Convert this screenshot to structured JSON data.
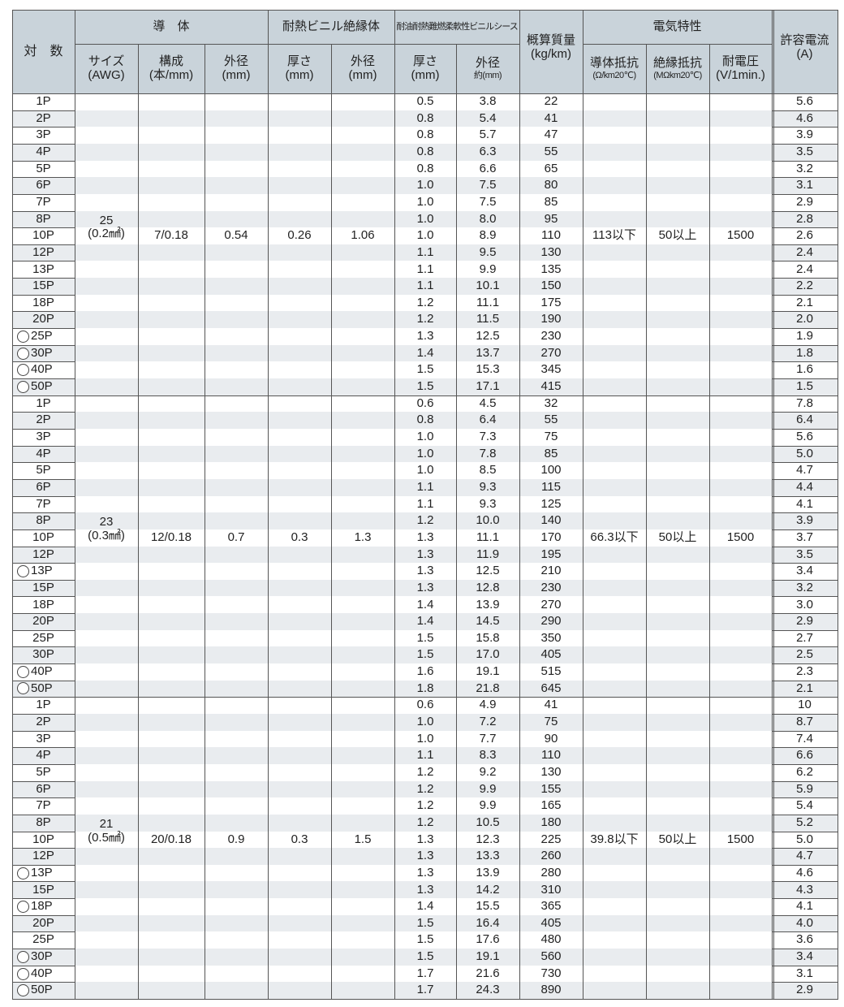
{
  "header": {
    "pairs": "対　数",
    "conductor": "導　体",
    "conductor_size": "サイズ",
    "conductor_size_unit": "(AWG)",
    "conductor_construction": "構成",
    "conductor_construction_unit": "(本/mm)",
    "conductor_od": "外径",
    "conductor_od_unit": "(mm)",
    "insulation": "耐熱ビニル絶縁体",
    "insulation_thickness": "厚さ",
    "insulation_thickness_unit": "(mm)",
    "insulation_od": "外径",
    "insulation_od_unit": "(mm)",
    "sheath": "耐油耐熱難燃柔軟性ビニルシース",
    "sheath_thickness": "厚さ",
    "sheath_thickness_unit": "(mm)",
    "sheath_od": "外径",
    "sheath_od_unit": "約(mm)",
    "mass": "概算質量",
    "mass_unit": "(kg/km)",
    "electrical": "電気特性",
    "resistance": "導体抵抗",
    "resistance_unit": "(Ω/km20℃)",
    "insulation_resistance": "絶縁抵抗",
    "insulation_resistance_unit": "(MΩkm20℃)",
    "withstand_voltage": "耐電圧",
    "withstand_voltage_unit": "(V/1min.)",
    "current": "許容電流",
    "current_unit": "(A)"
  },
  "groups": [
    {
      "awg": "25",
      "area": "(0.2㎟)",
      "construction": "7/0.18",
      "conductor_od": "0.54",
      "ins_thickness": "0.26",
      "ins_od": "1.06",
      "resistance": "113以下",
      "ins_resistance": "50以上",
      "voltage": "1500",
      "rows": [
        {
          "pairs": "1P",
          "marked": false,
          "thickness": "0.5",
          "od": "3.8",
          "mass": "22",
          "current": "5.6"
        },
        {
          "pairs": "2P",
          "marked": false,
          "thickness": "0.8",
          "od": "5.4",
          "mass": "41",
          "current": "4.6"
        },
        {
          "pairs": "3P",
          "marked": false,
          "thickness": "0.8",
          "od": "5.7",
          "mass": "47",
          "current": "3.9"
        },
        {
          "pairs": "4P",
          "marked": false,
          "thickness": "0.8",
          "od": "6.3",
          "mass": "55",
          "current": "3.5"
        },
        {
          "pairs": "5P",
          "marked": false,
          "thickness": "0.8",
          "od": "6.6",
          "mass": "65",
          "current": "3.2"
        },
        {
          "pairs": "6P",
          "marked": false,
          "thickness": "1.0",
          "od": "7.5",
          "mass": "80",
          "current": "3.1"
        },
        {
          "pairs": "7P",
          "marked": false,
          "thickness": "1.0",
          "od": "7.5",
          "mass": "85",
          "current": "2.9"
        },
        {
          "pairs": "8P",
          "marked": false,
          "thickness": "1.0",
          "od": "8.0",
          "mass": "95",
          "current": "2.8"
        },
        {
          "pairs": "10P",
          "marked": false,
          "thickness": "1.0",
          "od": "8.9",
          "mass": "110",
          "current": "2.6"
        },
        {
          "pairs": "12P",
          "marked": false,
          "thickness": "1.1",
          "od": "9.5",
          "mass": "130",
          "current": "2.4"
        },
        {
          "pairs": "13P",
          "marked": false,
          "thickness": "1.1",
          "od": "9.9",
          "mass": "135",
          "current": "2.4"
        },
        {
          "pairs": "15P",
          "marked": false,
          "thickness": "1.1",
          "od": "10.1",
          "mass": "150",
          "current": "2.2"
        },
        {
          "pairs": "18P",
          "marked": false,
          "thickness": "1.2",
          "od": "11.1",
          "mass": "175",
          "current": "2.1"
        },
        {
          "pairs": "20P",
          "marked": false,
          "thickness": "1.2",
          "od": "11.5",
          "mass": "190",
          "current": "2.0"
        },
        {
          "pairs": "25P",
          "marked": true,
          "thickness": "1.3",
          "od": "12.5",
          "mass": "230",
          "current": "1.9"
        },
        {
          "pairs": "30P",
          "marked": true,
          "thickness": "1.4",
          "od": "13.7",
          "mass": "270",
          "current": "1.8"
        },
        {
          "pairs": "40P",
          "marked": true,
          "thickness": "1.5",
          "od": "15.3",
          "mass": "345",
          "current": "1.6"
        },
        {
          "pairs": "50P",
          "marked": true,
          "thickness": "1.5",
          "od": "17.1",
          "mass": "415",
          "current": "1.5"
        }
      ]
    },
    {
      "awg": "23",
      "area": "(0.3㎟)",
      "construction": "12/0.18",
      "conductor_od": "0.7",
      "ins_thickness": "0.3",
      "ins_od": "1.3",
      "resistance": "66.3以下",
      "ins_resistance": "50以上",
      "voltage": "1500",
      "rows": [
        {
          "pairs": "1P",
          "marked": false,
          "thickness": "0.6",
          "od": "4.5",
          "mass": "32",
          "current": "7.8"
        },
        {
          "pairs": "2P",
          "marked": false,
          "thickness": "0.8",
          "od": "6.4",
          "mass": "55",
          "current": "6.4"
        },
        {
          "pairs": "3P",
          "marked": false,
          "thickness": "1.0",
          "od": "7.3",
          "mass": "75",
          "current": "5.6"
        },
        {
          "pairs": "4P",
          "marked": false,
          "thickness": "1.0",
          "od": "7.8",
          "mass": "85",
          "current": "5.0"
        },
        {
          "pairs": "5P",
          "marked": false,
          "thickness": "1.0",
          "od": "8.5",
          "mass": "100",
          "current": "4.7"
        },
        {
          "pairs": "6P",
          "marked": false,
          "thickness": "1.1",
          "od": "9.3",
          "mass": "115",
          "current": "4.4"
        },
        {
          "pairs": "7P",
          "marked": false,
          "thickness": "1.1",
          "od": "9.3",
          "mass": "125",
          "current": "4.1"
        },
        {
          "pairs": "8P",
          "marked": false,
          "thickness": "1.2",
          "od": "10.0",
          "mass": "140",
          "current": "3.9"
        },
        {
          "pairs": "10P",
          "marked": false,
          "thickness": "1.3",
          "od": "11.1",
          "mass": "170",
          "current": "3.7"
        },
        {
          "pairs": "12P",
          "marked": false,
          "thickness": "1.3",
          "od": "11.9",
          "mass": "195",
          "current": "3.5"
        },
        {
          "pairs": "13P",
          "marked": true,
          "thickness": "1.3",
          "od": "12.5",
          "mass": "210",
          "current": "3.4"
        },
        {
          "pairs": "15P",
          "marked": false,
          "thickness": "1.3",
          "od": "12.8",
          "mass": "230",
          "current": "3.2"
        },
        {
          "pairs": "18P",
          "marked": false,
          "thickness": "1.4",
          "od": "13.9",
          "mass": "270",
          "current": "3.0"
        },
        {
          "pairs": "20P",
          "marked": false,
          "thickness": "1.4",
          "od": "14.5",
          "mass": "290",
          "current": "2.9"
        },
        {
          "pairs": "25P",
          "marked": false,
          "thickness": "1.5",
          "od": "15.8",
          "mass": "350",
          "current": "2.7"
        },
        {
          "pairs": "30P",
          "marked": false,
          "thickness": "1.5",
          "od": "17.0",
          "mass": "405",
          "current": "2.5"
        },
        {
          "pairs": "40P",
          "marked": true,
          "thickness": "1.6",
          "od": "19.1",
          "mass": "515",
          "current": "2.3"
        },
        {
          "pairs": "50P",
          "marked": true,
          "thickness": "1.8",
          "od": "21.8",
          "mass": "645",
          "current": "2.1"
        }
      ]
    },
    {
      "awg": "21",
      "area": "(0.5㎟)",
      "construction": "20/0.18",
      "conductor_od": "0.9",
      "ins_thickness": "0.3",
      "ins_od": "1.5",
      "resistance": "39.8以下",
      "ins_resistance": "50以上",
      "voltage": "1500",
      "rows": [
        {
          "pairs": "1P",
          "marked": false,
          "thickness": "0.6",
          "od": "4.9",
          "mass": "41",
          "current": "10"
        },
        {
          "pairs": "2P",
          "marked": false,
          "thickness": "1.0",
          "od": "7.2",
          "mass": "75",
          "current": "8.7"
        },
        {
          "pairs": "3P",
          "marked": false,
          "thickness": "1.0",
          "od": "7.7",
          "mass": "90",
          "current": "7.4"
        },
        {
          "pairs": "4P",
          "marked": false,
          "thickness": "1.1",
          "od": "8.3",
          "mass": "110",
          "current": "6.6"
        },
        {
          "pairs": "5P",
          "marked": false,
          "thickness": "1.2",
          "od": "9.2",
          "mass": "130",
          "current": "6.2"
        },
        {
          "pairs": "6P",
          "marked": false,
          "thickness": "1.2",
          "od": "9.9",
          "mass": "155",
          "current": "5.9"
        },
        {
          "pairs": "7P",
          "marked": false,
          "thickness": "1.2",
          "od": "9.9",
          "mass": "165",
          "current": "5.4"
        },
        {
          "pairs": "8P",
          "marked": false,
          "thickness": "1.2",
          "od": "10.5",
          "mass": "180",
          "current": "5.2"
        },
        {
          "pairs": "10P",
          "marked": false,
          "thickness": "1.3",
          "od": "12.3",
          "mass": "225",
          "current": "5.0"
        },
        {
          "pairs": "12P",
          "marked": false,
          "thickness": "1.3",
          "od": "13.3",
          "mass": "260",
          "current": "4.7"
        },
        {
          "pairs": "13P",
          "marked": true,
          "thickness": "1.3",
          "od": "13.9",
          "mass": "280",
          "current": "4.6"
        },
        {
          "pairs": "15P",
          "marked": false,
          "thickness": "1.3",
          "od": "14.2",
          "mass": "310",
          "current": "4.3"
        },
        {
          "pairs": "18P",
          "marked": true,
          "thickness": "1.4",
          "od": "15.5",
          "mass": "365",
          "current": "4.1"
        },
        {
          "pairs": "20P",
          "marked": false,
          "thickness": "1.5",
          "od": "16.4",
          "mass": "405",
          "current": "4.0"
        },
        {
          "pairs": "25P",
          "marked": false,
          "thickness": "1.5",
          "od": "17.6",
          "mass": "480",
          "current": "3.6"
        },
        {
          "pairs": "30P",
          "marked": true,
          "thickness": "1.5",
          "od": "19.1",
          "mass": "560",
          "current": "3.4"
        },
        {
          "pairs": "40P",
          "marked": true,
          "thickness": "1.7",
          "od": "21.6",
          "mass": "730",
          "current": "3.1"
        },
        {
          "pairs": "50P",
          "marked": true,
          "thickness": "1.7",
          "od": "24.3",
          "mass": "890",
          "current": "2.9"
        }
      ]
    }
  ],
  "colors": {
    "header_bg": "#c9d3da",
    "stripe": "#e9ecef",
    "border": "#555555"
  }
}
